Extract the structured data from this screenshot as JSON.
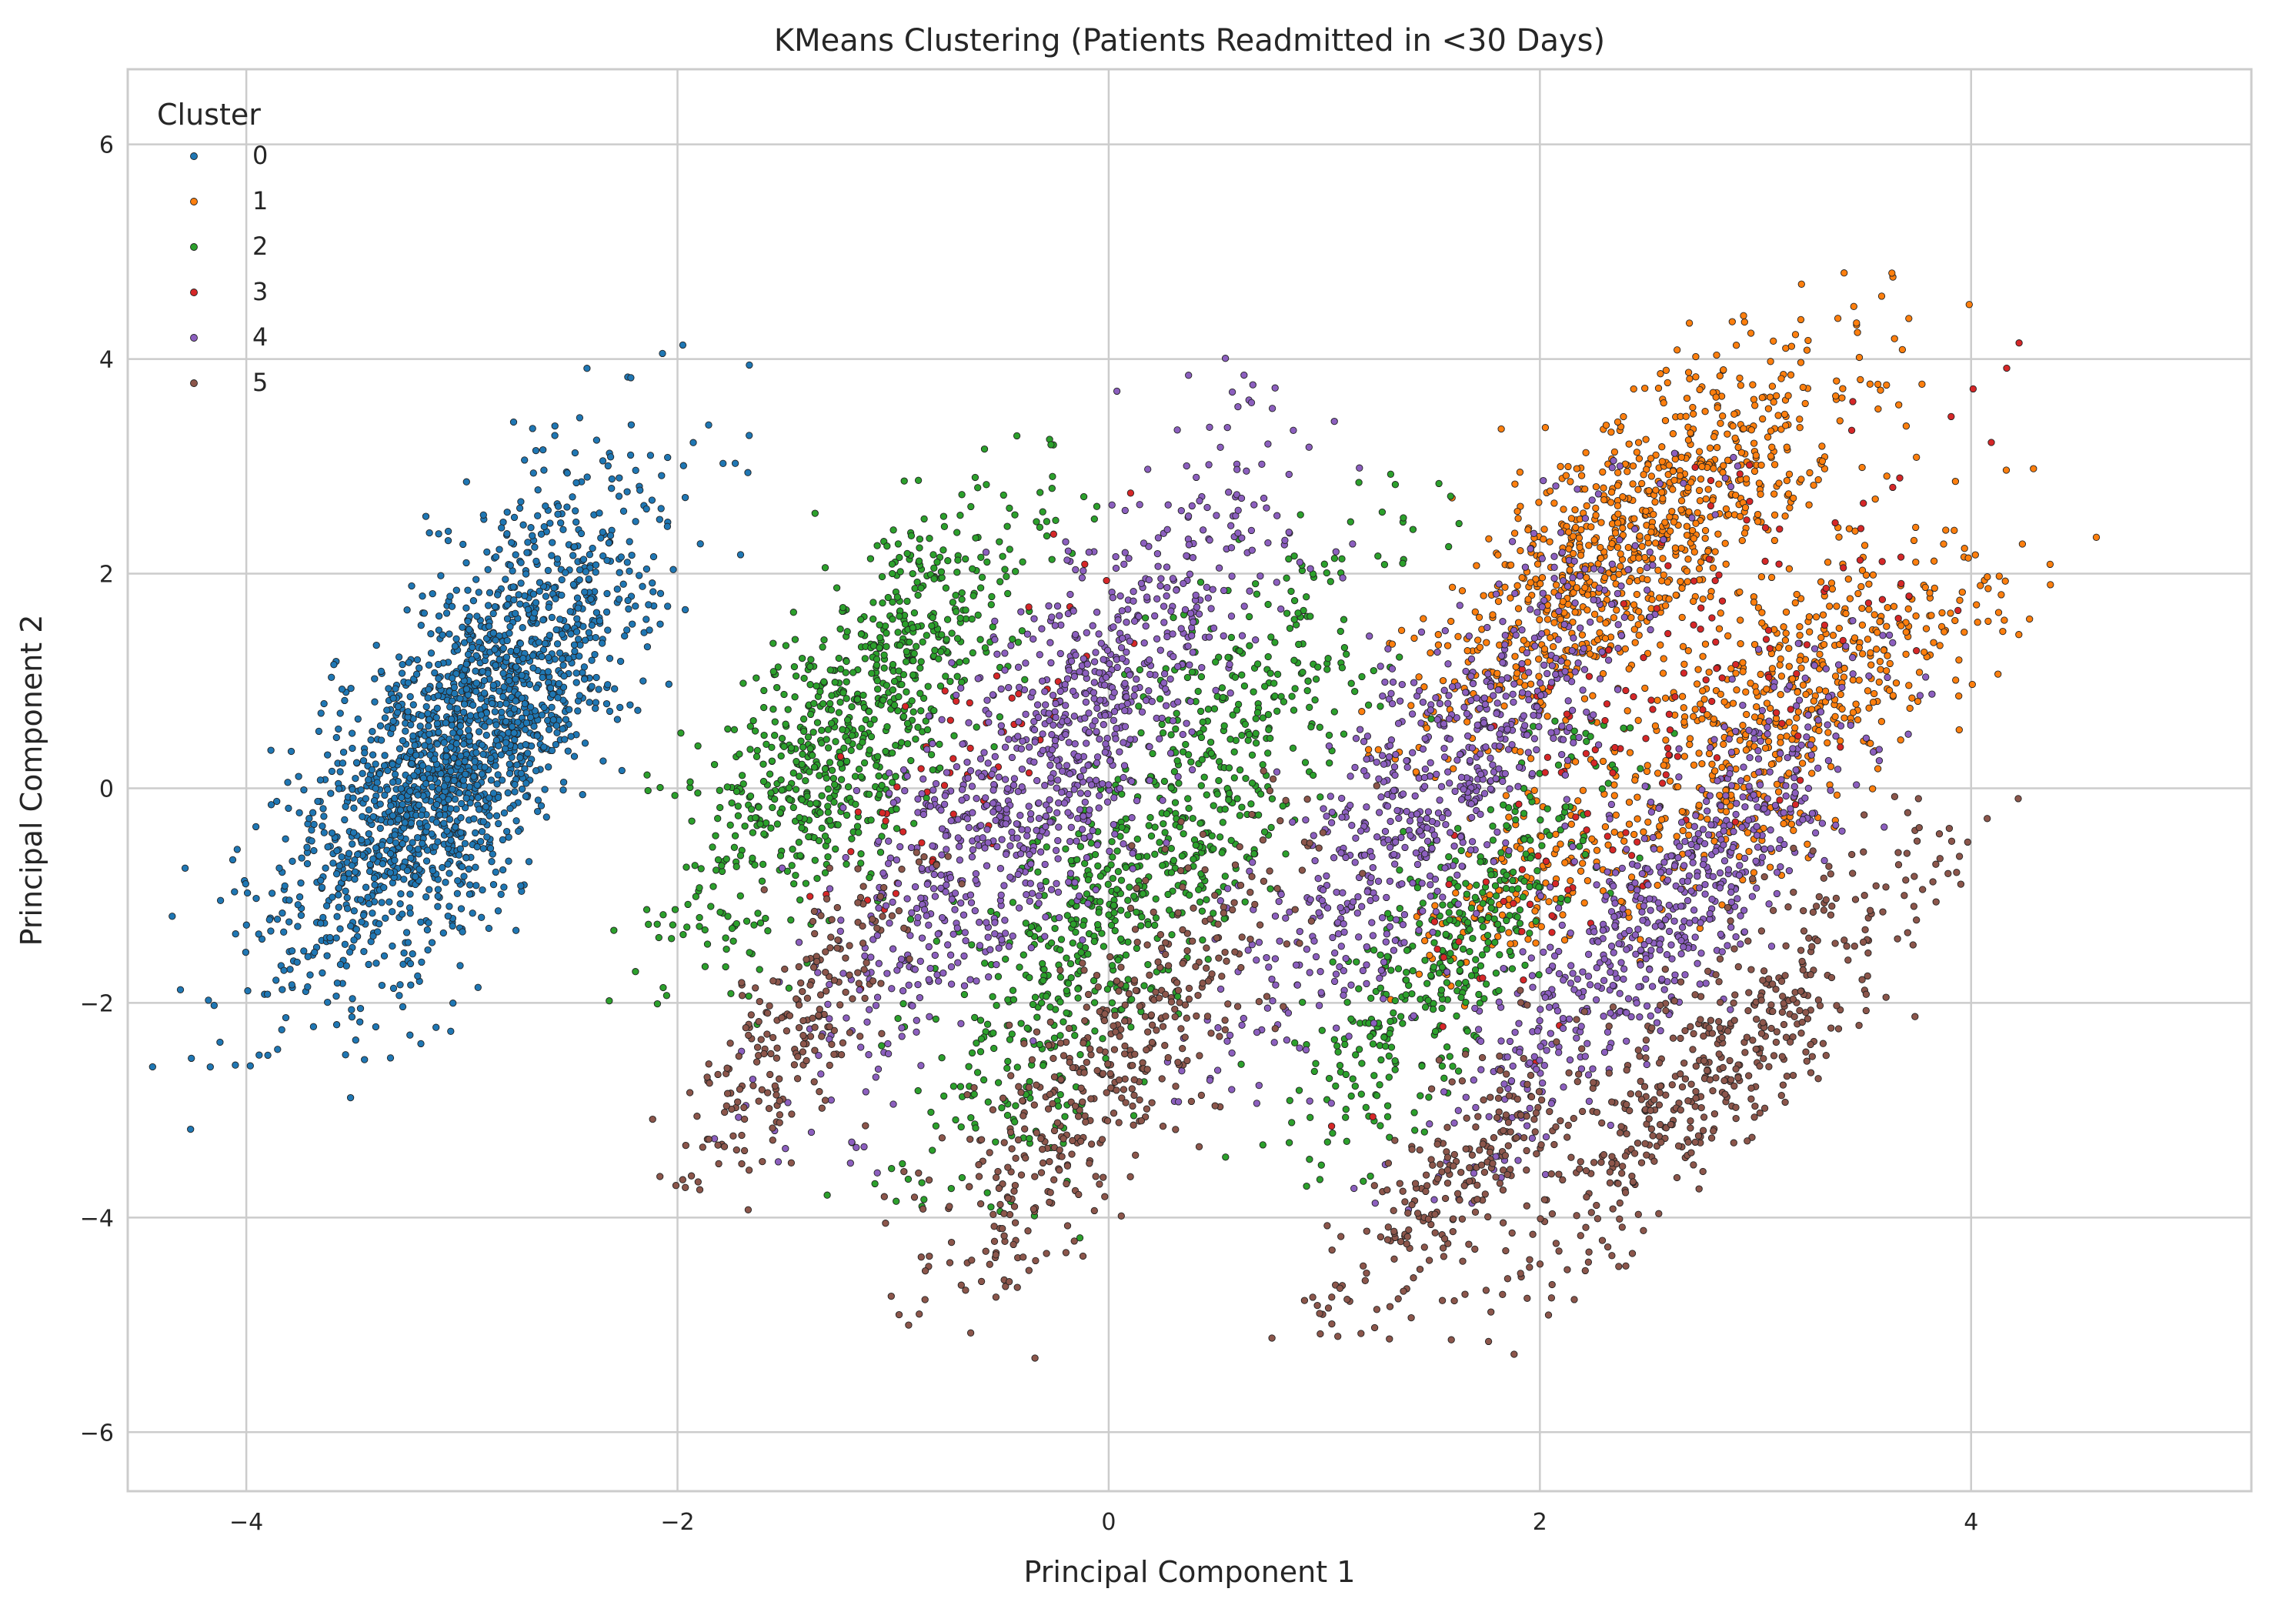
{
  "chart_data": {
    "type": "scatter",
    "title": "KMeans Clustering (Patients Readmitted in <30 Days)",
    "xlabel": "Principal Component 1",
    "ylabel": "Principal Component 2",
    "xlim": [
      -4.55,
      5.3
    ],
    "ylim": [
      -6.55,
      6.7
    ],
    "xticks": [
      -4,
      -2,
      0,
      2,
      4
    ],
    "yticks": [
      -6,
      -4,
      -2,
      0,
      2,
      4,
      6
    ],
    "xtick_labels": [
      "−4",
      "−2",
      "0",
      "2",
      "4"
    ],
    "ytick_labels": [
      "−6",
      "−4",
      "−2",
      "0",
      "2",
      "4",
      "6"
    ],
    "grid": true,
    "legend": {
      "title": "Cluster",
      "placement": "top-left",
      "entries": [
        "0",
        "1",
        "2",
        "3",
        "4",
        "5"
      ]
    },
    "series": [
      {
        "name": "0",
        "color": "#1f77b4",
        "blobs": [
          {
            "center": [
              -3.0,
              0.4
            ],
            "axis": [
              0.26,
              0.97
            ],
            "sd_major": 1.2,
            "sd_minor": 0.27,
            "n": 1900,
            "spread": [
              -3.9,
              3.9
            ]
          }
        ]
      },
      {
        "name": "1",
        "color": "#ff7f0e",
        "blobs": [
          {
            "center": [
              2.45,
              2.3
            ],
            "axis": [
              0.42,
              0.91
            ],
            "sd_major": 1.0,
            "sd_minor": 0.3,
            "n": 900,
            "spread": [
              -2.5,
              2.8
            ]
          },
          {
            "center": [
              3.15,
              0.7
            ],
            "axis": [
              0.42,
              0.91
            ],
            "sd_major": 1.0,
            "sd_minor": 0.3,
            "n": 600,
            "spread": [
              -2.5,
              2.8
            ]
          },
          {
            "center": [
              1.85,
              -0.9
            ],
            "axis": [
              0.34,
              0.94
            ],
            "sd_major": 0.6,
            "sd_minor": 0.18,
            "n": 120,
            "spread": [
              -2.2,
              2.2
            ]
          }
        ]
      },
      {
        "name": "2",
        "color": "#2ca02c",
        "blobs": [
          {
            "center": [
              -1.2,
              0.6
            ],
            "axis": [
              0.3,
              0.95
            ],
            "sd_major": 1.1,
            "sd_minor": 0.24,
            "n": 800,
            "spread": [
              -2.6,
              2.6
            ]
          },
          {
            "center": [
              0.2,
              -0.6
            ],
            "axis": [
              0.3,
              0.95
            ],
            "sd_major": 1.5,
            "sd_minor": 0.26,
            "n": 800,
            "spread": [
              -2.4,
              2.5
            ]
          },
          {
            "center": [
              1.55,
              -1.6
            ],
            "axis": [
              0.3,
              0.95
            ],
            "sd_major": 1.0,
            "sd_minor": 0.2,
            "n": 400,
            "spread": [
              -2.4,
              2.4
            ]
          }
        ]
      },
      {
        "name": "3",
        "color": "#d62728",
        "blobs": [
          {
            "center": [
              2.6,
              0.8
            ],
            "axis": [
              0.35,
              0.94
            ],
            "sd_major": 1.6,
            "sd_minor": 0.4,
            "n": 160,
            "spread": [
              -2.8,
              3.0
            ]
          },
          {
            "center": [
              -0.6,
              0.4
            ],
            "axis": [
              0.3,
              0.95
            ],
            "sd_major": 1.0,
            "sd_minor": 0.2,
            "n": 60,
            "spread": [
              -2.5,
              2.5
            ]
          }
        ]
      },
      {
        "name": "4",
        "color": "#8c5fbf",
        "blobs": [
          {
            "center": [
              -0.3,
              0.2
            ],
            "axis": [
              0.3,
              0.95
            ],
            "sd_major": 1.5,
            "sd_minor": 0.27,
            "n": 1000,
            "spread": [
              -2.6,
              2.6
            ]
          },
          {
            "center": [
              1.55,
              0.1
            ],
            "axis": [
              0.32,
              0.95
            ],
            "sd_major": 1.3,
            "sd_minor": 0.26,
            "n": 700,
            "spread": [
              -2.5,
              2.5
            ]
          },
          {
            "center": [
              2.55,
              -1.2
            ],
            "axis": [
              0.36,
              0.93
            ],
            "sd_major": 1.2,
            "sd_minor": 0.22,
            "n": 650,
            "spread": [
              -2.5,
              2.5
            ]
          }
        ]
      },
      {
        "name": "5",
        "color": "#8c564b",
        "blobs": [
          {
            "center": [
              -1.45,
              -2.2
            ],
            "axis": [
              0.3,
              0.95
            ],
            "sd_major": 0.8,
            "sd_minor": 0.16,
            "n": 220,
            "spread": [
              -2.2,
              2.2
            ]
          },
          {
            "center": [
              0.0,
              -2.6
            ],
            "axis": [
              0.32,
              0.95
            ],
            "sd_major": 1.2,
            "sd_minor": 0.22,
            "n": 450,
            "spread": [
              -2.4,
              2.4
            ]
          },
          {
            "center": [
              1.6,
              -3.6
            ],
            "axis": [
              0.34,
              0.94
            ],
            "sd_major": 0.8,
            "sd_minor": 0.18,
            "n": 220,
            "spread": [
              -2.2,
              2.2
            ]
          },
          {
            "center": [
              2.8,
              -2.6
            ],
            "axis": [
              0.4,
              0.92
            ],
            "sd_major": 1.2,
            "sd_minor": 0.22,
            "n": 500,
            "spread": [
              -2.4,
              2.4
            ]
          }
        ]
      }
    ]
  }
}
